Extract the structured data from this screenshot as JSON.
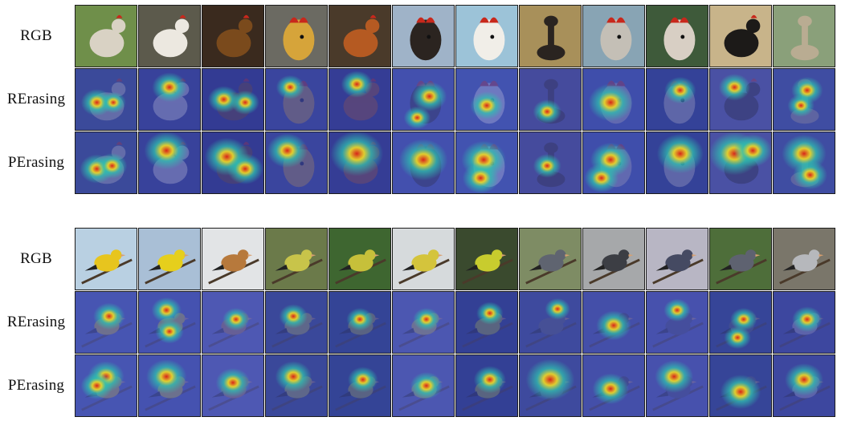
{
  "figure": {
    "panels": [
      {
        "id": "top",
        "rows": [
          {
            "label": "RGB",
            "kind": "rgb"
          },
          {
            "label": "RErasing",
            "kind": "heatmap-r"
          },
          {
            "label": "PErasing",
            "kind": "heatmap-p"
          }
        ],
        "images": [
          {
            "subject": "chicken",
            "bg": "#6f8f4a",
            "fg": "#d9d2c4",
            "shape": "body"
          },
          {
            "subject": "hen",
            "bg": "#5c5a4c",
            "fg": "#ece8e0",
            "shape": "body"
          },
          {
            "subject": "rooster",
            "bg": "#3a2a1e",
            "fg": "#7a4a1c",
            "shape": "body"
          },
          {
            "subject": "rooster",
            "bg": "#6b6a62",
            "fg": "#d6a43a",
            "shape": "head"
          },
          {
            "subject": "rooster",
            "bg": "#4a3a2a",
            "fg": "#b55a22",
            "shape": "body"
          },
          {
            "subject": "rooster-head",
            "bg": "#9fb3c8",
            "fg": "#2b2420",
            "shape": "head"
          },
          {
            "subject": "rooster-head",
            "bg": "#9cc3d8",
            "fg": "#f1eee8",
            "shape": "head"
          },
          {
            "subject": "ostrich",
            "bg": "#a8905a",
            "fg": "#2a2420",
            "shape": "neck"
          },
          {
            "subject": "ostrich-head",
            "bg": "#88a4b4",
            "fg": "#c4bfb6",
            "shape": "head"
          },
          {
            "subject": "ostrich-head",
            "bg": "#3e5a3a",
            "fg": "#d8cfc4",
            "shape": "head"
          },
          {
            "subject": "ostrich",
            "bg": "#c8b48a",
            "fg": "#1c1a18",
            "shape": "body"
          },
          {
            "subject": "ostrich-head",
            "bg": "#8aa07a",
            "fg": "#b9ac92",
            "shape": "neck"
          }
        ],
        "heat_r": [
          [
            [
              0.35,
              0.55,
              0.5
            ],
            [
              0.62,
              0.55,
              0.3
            ]
          ],
          [
            [
              0.5,
              0.3,
              0.6
            ]
          ],
          [
            [
              0.35,
              0.5,
              0.5
            ],
            [
              0.7,
              0.55,
              0.4
            ]
          ],
          [
            [
              0.4,
              0.3,
              0.4
            ]
          ],
          [
            [
              0.45,
              0.25,
              0.5
            ]
          ],
          [
            [
              0.6,
              0.45,
              0.6
            ],
            [
              0.4,
              0.8,
              0.35
            ]
          ],
          [
            [
              0.5,
              0.6,
              0.55
            ]
          ],
          [
            [
              0.45,
              0.7,
              0.4
            ]
          ],
          [
            [
              0.45,
              0.55,
              0.9
            ]
          ],
          [
            [
              0.55,
              0.35,
              0.5
            ]
          ],
          [
            [
              0.4,
              0.3,
              0.5
            ]
          ],
          [
            [
              0.55,
              0.35,
              0.5
            ],
            [
              0.45,
              0.6,
              0.35
            ]
          ]
        ],
        "heat_p": [
          [
            [
              0.35,
              0.6,
              0.45
            ],
            [
              0.6,
              0.55,
              0.35
            ]
          ],
          [
            [
              0.45,
              0.3,
              0.7
            ]
          ],
          [
            [
              0.4,
              0.4,
              0.7
            ],
            [
              0.7,
              0.6,
              0.5
            ]
          ],
          [
            [
              0.35,
              0.3,
              0.6
            ]
          ],
          [
            [
              0.45,
              0.35,
              0.9
            ]
          ],
          [
            [
              0.5,
              0.45,
              0.8
            ]
          ],
          [
            [
              0.45,
              0.45,
              0.7
            ],
            [
              0.4,
              0.75,
              0.5
            ]
          ],
          [
            [
              0.45,
              0.55,
              0.3
            ]
          ],
          [
            [
              0.45,
              0.45,
              0.6
            ],
            [
              0.3,
              0.75,
              0.45
            ]
          ],
          [
            [
              0.55,
              0.35,
              0.75
            ]
          ],
          [
            [
              0.4,
              0.35,
              0.85
            ],
            [
              0.7,
              0.3,
              0.55
            ]
          ],
          [
            [
              0.5,
              0.35,
              0.7
            ],
            [
              0.6,
              0.7,
              0.45
            ]
          ]
        ]
      },
      {
        "id": "bottom",
        "rows": [
          {
            "label": "RGB",
            "kind": "rgb"
          },
          {
            "label": "RErasing",
            "kind": "heatmap-r"
          },
          {
            "label": "PErasing",
            "kind": "heatmap-p"
          }
        ],
        "images": [
          {
            "subject": "goldfinch",
            "bg": "#b9d0e2",
            "fg": "#e7c51e",
            "shape": "bird"
          },
          {
            "subject": "goldfinch",
            "bg": "#a9bfd6",
            "fg": "#e6cf1c",
            "shape": "bird"
          },
          {
            "subject": "goldfinch",
            "bg": "#e2e4e6",
            "fg": "#b7793c",
            "shape": "bird"
          },
          {
            "subject": "goldfinch",
            "bg": "#6b7a4a",
            "fg": "#c8c44a",
            "shape": "bird"
          },
          {
            "subject": "goldfinch",
            "bg": "#3e6630",
            "fg": "#c6c03a",
            "shape": "bird"
          },
          {
            "subject": "goldfinch",
            "bg": "#d6dadc",
            "fg": "#d4c43c",
            "shape": "bird"
          },
          {
            "subject": "goldfinch",
            "bg": "#3a4a2e",
            "fg": "#c8cc2e",
            "shape": "bird"
          },
          {
            "subject": "junco",
            "bg": "#7e8c64",
            "fg": "#5f6470",
            "shape": "bird"
          },
          {
            "subject": "junco",
            "bg": "#a6a8aa",
            "fg": "#3c3e44",
            "shape": "bird"
          },
          {
            "subject": "junco",
            "bg": "#b8b6c4",
            "fg": "#454a62",
            "shape": "bird"
          },
          {
            "subject": "junco",
            "bg": "#4e6e3a",
            "fg": "#5e6270",
            "shape": "bird"
          },
          {
            "subject": "junco",
            "bg": "#7a766a",
            "fg": "#b6b8bc",
            "shape": "bird"
          }
        ],
        "heat_r": [
          [
            [
              0.55,
              0.4,
              0.5
            ]
          ],
          [
            [
              0.45,
              0.3,
              0.45
            ],
            [
              0.5,
              0.65,
              0.4
            ]
          ],
          [
            [
              0.55,
              0.45,
              0.35
            ]
          ],
          [
            [
              0.45,
              0.4,
              0.4
            ]
          ],
          [
            [
              0.5,
              0.45,
              0.35
            ]
          ],
          [
            [
              0.55,
              0.45,
              0.35
            ]
          ],
          [
            [
              0.55,
              0.35,
              0.35
            ]
          ],
          [
            [
              0.62,
              0.28,
              0.3
            ]
          ],
          [
            [
              0.5,
              0.55,
              0.6
            ]
          ],
          [
            [
              0.5,
              0.3,
              0.35
            ]
          ],
          [
            [
              0.55,
              0.45,
              0.35
            ],
            [
              0.45,
              0.75,
              0.35
            ]
          ],
          [
            [
              0.55,
              0.45,
              0.45
            ]
          ]
        ],
        "heat_p": [
          [
            [
              0.5,
              0.35,
              0.5
            ],
            [
              0.35,
              0.5,
              0.4
            ]
          ],
          [
            [
              0.45,
              0.35,
              0.6
            ]
          ],
          [
            [
              0.5,
              0.45,
              0.45
            ]
          ],
          [
            [
              0.45,
              0.35,
              0.5
            ]
          ],
          [
            [
              0.55,
              0.4,
              0.35
            ]
          ],
          [
            [
              0.55,
              0.5,
              0.4
            ]
          ],
          [
            [
              0.55,
              0.4,
              0.4
            ]
          ],
          [
            [
              0.5,
              0.4,
              0.8
            ]
          ],
          [
            [
              0.45,
              0.55,
              0.5
            ]
          ],
          [
            [
              0.45,
              0.35,
              0.55
            ]
          ],
          [
            [
              0.5,
              0.6,
              0.6
            ]
          ],
          [
            [
              0.5,
              0.4,
              0.55
            ]
          ]
        ]
      }
    ],
    "colors": {
      "heat_base": "#2d3a9a",
      "heat_mid": "#2fbfb0",
      "heat_hot": "#e8d42a",
      "heat_core": "#d8241a"
    }
  }
}
